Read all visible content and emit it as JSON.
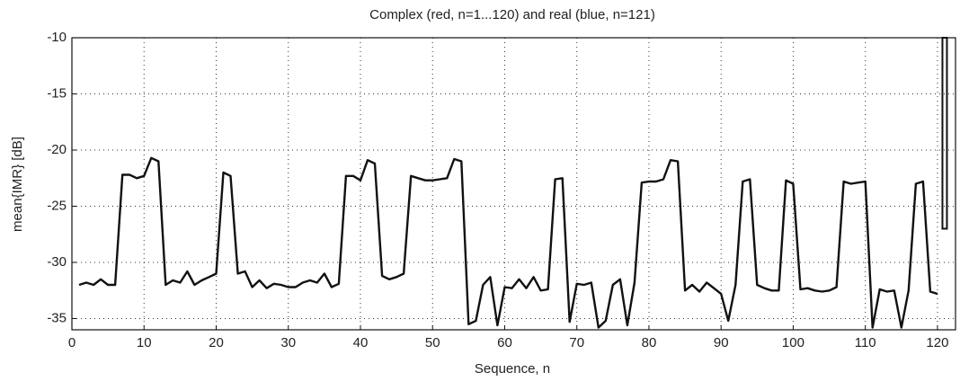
{
  "chart_data": {
    "type": "line",
    "title": "Complex (red, n=1...120) and real (blue, n=121)",
    "x_label": "Sequence,  n",
    "y_label": "mean{IMR}  [dB]",
    "xlim": [
      0,
      122.5
    ],
    "ylim": [
      -36,
      -10
    ],
    "xticks": [
      0,
      10,
      20,
      30,
      40,
      50,
      60,
      70,
      80,
      90,
      100,
      110,
      120
    ],
    "yticks": [
      -35,
      -30,
      -25,
      -20,
      -15,
      -10
    ],
    "grid": true,
    "series": [
      {
        "color": "#111111",
        "style": "line",
        "x": [
          1,
          2,
          3,
          4,
          5,
          6,
          7,
          8,
          9,
          10,
          11,
          12,
          13,
          14,
          15,
          16,
          17,
          18,
          19,
          20,
          21,
          22,
          23,
          24,
          25,
          26,
          27,
          28,
          29,
          30,
          31,
          32,
          33,
          34,
          35,
          36,
          37,
          38,
          39,
          40,
          41,
          42,
          43,
          44,
          45,
          46,
          47,
          48,
          49,
          50,
          51,
          52,
          53,
          54,
          55,
          56,
          57,
          58,
          59,
          60,
          61,
          62,
          63,
          64,
          65,
          66,
          67,
          68,
          69,
          70,
          71,
          72,
          73,
          74,
          75,
          76,
          77,
          78,
          79,
          80,
          81,
          82,
          83,
          84,
          85,
          86,
          87,
          88,
          89,
          90,
          91,
          92,
          93,
          94,
          95,
          96,
          97,
          98,
          99,
          100,
          101,
          102,
          103,
          104,
          105,
          106,
          107,
          108,
          109,
          110,
          111,
          112,
          113,
          114,
          115,
          116,
          117,
          118,
          119,
          120
        ],
        "values": [
          -32,
          -31.8,
          -32,
          -31.5,
          -32,
          -32,
          -22.2,
          -22.2,
          -22.5,
          -22.3,
          -20.7,
          -21,
          -32,
          -31.6,
          -31.8,
          -30.8,
          -32,
          -31.6,
          -31.3,
          -31,
          -22,
          -22.3,
          -31,
          -30.8,
          -32.2,
          -31.6,
          -32.3,
          -31.9,
          -32,
          -32.2,
          -32.2,
          -31.8,
          -31.6,
          -31.8,
          -31,
          -32.2,
          -31.9,
          -22.3,
          -22.3,
          -22.7,
          -20.9,
          -21.2,
          -31.2,
          -31.5,
          -31.3,
          -31,
          -22.3,
          -22.5,
          -22.7,
          -22.7,
          -22.6,
          -22.5,
          -20.8,
          -21,
          -35.5,
          -35.2,
          -32,
          -31.3,
          -35.6,
          -32.2,
          -32.3,
          -31.5,
          -32.3,
          -31.3,
          -32.5,
          -32.4,
          -22.6,
          -22.5,
          -35.3,
          -31.9,
          -32,
          -31.8,
          -35.8,
          -35.2,
          -32,
          -31.5,
          -35.6,
          -31.8,
          -22.9,
          -22.8,
          -22.8,
          -22.6,
          -20.9,
          -21,
          -32.5,
          -32,
          -32.6,
          -31.8,
          -32.3,
          -32.8,
          -35.2,
          -32,
          -22.8,
          -22.6,
          -32,
          -32.3,
          -32.5,
          -32.5,
          -22.7,
          -23,
          -32.4,
          -32.3,
          -32.5,
          -32.6,
          -32.5,
          -32.2,
          -22.8,
          -23,
          -22.9,
          -22.8,
          -35.8,
          -32.4,
          -32.6,
          -32.5,
          -35.8,
          -32.5,
          -23,
          -22.8,
          -32.6,
          -32.8
        ]
      },
      {
        "color": "#111111",
        "style": "bar",
        "x": [
          121
        ],
        "values": [
          -27
        ]
      }
    ]
  }
}
